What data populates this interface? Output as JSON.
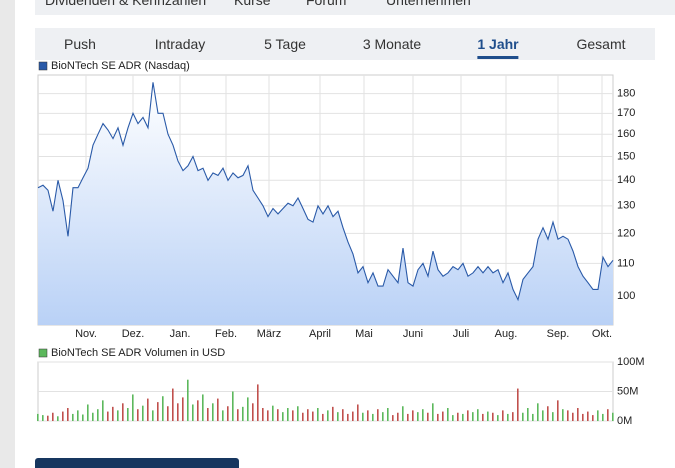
{
  "top_nav": [
    "Dividenden & Kennzahlen",
    "Kurse",
    "Forum",
    "Unternehmen"
  ],
  "tabs": [
    "Push",
    "Intraday",
    "5 Tage",
    "3 Monate",
    "1 Jahr",
    "Gesamt"
  ],
  "active_tab": 4,
  "chart_data": [
    {
      "type": "line",
      "legend": "BioNTech SE ADR (Nasdaq)",
      "color": "#2a5aa8",
      "fill_color": "#b9d1f6",
      "log_scale": true,
      "grid": true,
      "xlim": [
        0,
        115
      ],
      "xticks": [
        {
          "value": 9.6,
          "label": "Nov."
        },
        {
          "value": 19,
          "label": "Dez."
        },
        {
          "value": 28.4,
          "label": "Jan."
        },
        {
          "value": 37.6,
          "label": "Feb."
        },
        {
          "value": 46.2,
          "label": "März"
        },
        {
          "value": 56.4,
          "label": "April"
        },
        {
          "value": 65.2,
          "label": "Mai"
        },
        {
          "value": 75,
          "label": "Juni"
        },
        {
          "value": 84.6,
          "label": "Juli"
        },
        {
          "value": 93.6,
          "label": "Aug."
        },
        {
          "value": 104,
          "label": "Sep."
        },
        {
          "value": 112.8,
          "label": "Okt."
        }
      ],
      "ylim": [
        92,
        190
      ],
      "yticks": [
        100,
        110,
        120,
        130,
        140,
        150,
        160,
        170,
        180
      ],
      "values": [
        137,
        138,
        136,
        128,
        140,
        132,
        119,
        137,
        137,
        141,
        145,
        155,
        160,
        165,
        162,
        158,
        163,
        155,
        163,
        170,
        165,
        168,
        163,
        186,
        170,
        170,
        160,
        155,
        148,
        144,
        146,
        150,
        144,
        145,
        140,
        143,
        142,
        145,
        140,
        143,
        141,
        142,
        146,
        136,
        133,
        130,
        126,
        129,
        127,
        129,
        131,
        130,
        133,
        129,
        125,
        124,
        130,
        127,
        130,
        126,
        128,
        122,
        117,
        113,
        107,
        109,
        104,
        107,
        103,
        103,
        108,
        106,
        104,
        115,
        104,
        103,
        108,
        110,
        106,
        114,
        108,
        106,
        107,
        109,
        108,
        110,
        106,
        107,
        109,
        107,
        109,
        107,
        108,
        104,
        107,
        102,
        99,
        105,
        107,
        109,
        118,
        122,
        118,
        124,
        118,
        119,
        118,
        114,
        109,
        106,
        104,
        102,
        102,
        112,
        109,
        111
      ]
    },
    {
      "type": "bar",
      "legend": "BioNTech SE ADR Volumen in USD",
      "legend_color": "#5cb85c",
      "up_color": "#5cb85c",
      "down_color": "#c0504d",
      "grid": true,
      "xlim": [
        0,
        115
      ],
      "ylim": [
        0,
        100
      ],
      "yticks": [
        {
          "value": 0,
          "label": "0M"
        },
        {
          "value": 50,
          "label": "50M"
        },
        {
          "value": 100,
          "label": "100M"
        }
      ],
      "values": [
        12,
        10,
        9,
        14,
        8,
        16,
        22,
        12,
        18,
        11,
        28,
        14,
        20,
        35,
        16,
        24,
        18,
        30,
        22,
        45,
        20,
        26,
        38,
        18,
        32,
        42,
        25,
        55,
        30,
        40,
        70,
        28,
        35,
        45,
        22,
        30,
        38,
        18,
        25,
        50,
        20,
        24,
        40,
        30,
        62,
        22,
        18,
        26,
        20,
        15,
        22,
        18,
        25,
        14,
        20,
        16,
        22,
        12,
        18,
        24,
        15,
        20,
        12,
        16,
        28,
        14,
        18,
        12,
        20,
        15,
        22,
        10,
        14,
        25,
        12,
        18,
        15,
        20,
        14,
        30,
        12,
        16,
        22,
        10,
        14,
        12,
        18,
        15,
        20,
        12,
        16,
        14,
        10,
        18,
        12,
        15,
        55,
        14,
        22,
        12,
        30,
        18,
        25,
        15,
        35,
        20,
        18,
        14,
        22,
        12,
        16,
        10,
        18,
        12,
        20,
        14
      ]
    }
  ]
}
